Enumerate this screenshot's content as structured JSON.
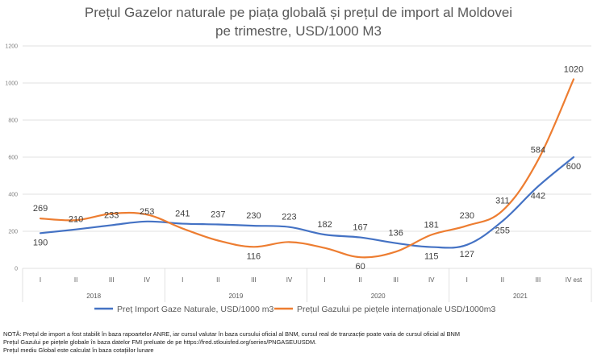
{
  "chart_data": {
    "type": "line",
    "title_lines": [
      "Prețul Gazelor naturale pe piața globală și prețul de import al Moldovei",
      "pe trimestre, USD/1000 M3"
    ],
    "categories": [
      "I",
      "II",
      "III",
      "IV",
      "I",
      "II",
      "III",
      "IV",
      "I",
      "II",
      "III",
      "IV",
      "I",
      "II",
      "III",
      "IV est"
    ],
    "years": [
      {
        "label": "2018",
        "from": 0,
        "to": 3
      },
      {
        "label": "2019",
        "from": 4,
        "to": 7
      },
      {
        "label": "2020",
        "from": 8,
        "to": 11
      },
      {
        "label": "2021",
        "from": 12,
        "to": 15
      }
    ],
    "ylim": [
      0,
      1200
    ],
    "yticks": [
      0,
      200,
      400,
      600,
      800,
      1000,
      1200
    ],
    "grid": true,
    "legend_position": "bottom",
    "series": [
      {
        "name": "Preț Import Gaze Naturale, USD/1000 m3",
        "color": "#4472c4",
        "values": [
          190,
          210,
          233,
          253,
          241,
          237,
          230,
          223,
          182,
          167,
          136,
          115,
          127,
          255,
          442,
          600
        ],
        "labels": [
          "190",
          "210",
          "233",
          "253",
          "241",
          "237",
          "230",
          "223",
          "182",
          "167",
          "136",
          "115",
          "127",
          "255",
          "442",
          "600"
        ]
      },
      {
        "name": "Prețul Gazului pe piețele internaționale USD/1000m3",
        "color": "#ed7d31",
        "values": [
          269,
          260,
          295,
          290,
          215,
          150,
          116,
          142,
          110,
          60,
          90,
          181,
          230,
          311,
          584,
          1020
        ],
        "labels": [
          "269",
          "",
          "",
          "",
          "",
          "",
          "116",
          "",
          "",
          "60",
          "",
          "181",
          "230",
          "311",
          "584",
          "1020"
        ]
      }
    ]
  },
  "notes": [
    "NOTĂ: Prețul de import a fost stabilit în baza rapoartelor ANRE, iar cursul valutar în baza cursului oficial al BNM, cursul real de tranzacție poate varia de cursul oficial al BNM",
    "Prețul Gazului pe piețele globale în baza datelor FMI preluate de pe https://fred.stlouisfed.org/series/PNGASEUUSDM.",
    "Prețul mediu Global este calculat în baza cotațiilor lunare"
  ]
}
